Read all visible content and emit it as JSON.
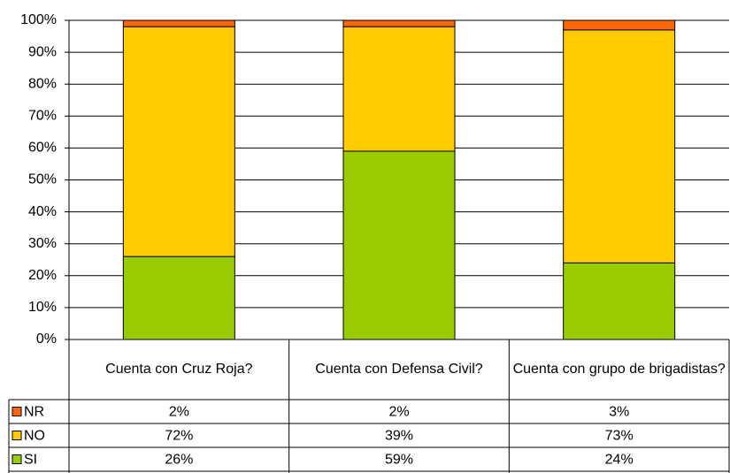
{
  "chart_data": {
    "type": "stacked_bar",
    "categories": [
      "Cuenta con Cruz Roja?",
      "Cuenta con Defensa Civil?",
      "Cuenta con grupo de brigadistas?"
    ],
    "series": [
      {
        "name": "SI",
        "color": "#99cc00",
        "values": [
          26,
          59,
          24
        ],
        "value_labels": [
          "26%",
          "59%",
          "24%"
        ]
      },
      {
        "name": "NO",
        "color": "#ffcc00",
        "values": [
          72,
          39,
          73
        ],
        "value_labels": [
          "72%",
          "39%",
          "73%"
        ]
      },
      {
        "name": "NR",
        "color": "#ff6600",
        "values": [
          2,
          2,
          3
        ],
        "value_labels": [
          "2%",
          "2%",
          "3%"
        ]
      }
    ],
    "ylim": [
      0,
      100
    ],
    "yticks": [
      {
        "value": 0,
        "label": "0%"
      },
      {
        "value": 10,
        "label": "10%"
      },
      {
        "value": 20,
        "label": "20%"
      },
      {
        "value": 30,
        "label": "30%"
      },
      {
        "value": 40,
        "label": "40%"
      },
      {
        "value": 50,
        "label": "50%"
      },
      {
        "value": 60,
        "label": "60%"
      },
      {
        "value": 70,
        "label": "70%"
      },
      {
        "value": 80,
        "label": "80%"
      },
      {
        "value": 90,
        "label": "90%"
      },
      {
        "value": 100,
        "label": "100%"
      }
    ],
    "grid": true
  }
}
